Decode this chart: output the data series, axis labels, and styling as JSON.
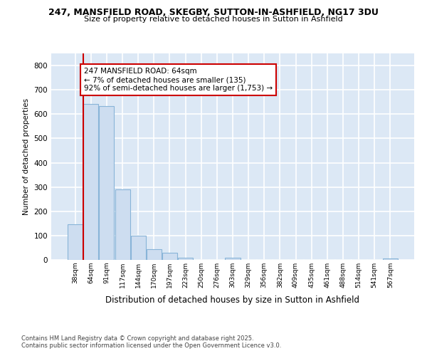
{
  "title_line1": "247, MANSFIELD ROAD, SKEGBY, SUTTON-IN-ASHFIELD, NG17 3DU",
  "title_line2": "Size of property relative to detached houses in Sutton in Ashfield",
  "xlabel": "Distribution of detached houses by size in Sutton in Ashfield",
  "ylabel": "Number of detached properties",
  "categories": [
    "38sqm",
    "64sqm",
    "91sqm",
    "117sqm",
    "144sqm",
    "170sqm",
    "197sqm",
    "223sqm",
    "250sqm",
    "276sqm",
    "303sqm",
    "329sqm",
    "356sqm",
    "382sqm",
    "409sqm",
    "435sqm",
    "461sqm",
    "488sqm",
    "514sqm",
    "541sqm",
    "567sqm"
  ],
  "values": [
    148,
    643,
    632,
    290,
    100,
    45,
    30,
    8,
    0,
    0,
    8,
    0,
    0,
    0,
    0,
    0,
    0,
    0,
    0,
    0,
    7
  ],
  "bar_color": "#cdddf0",
  "bar_edgecolor": "#88b4d8",
  "vline_color": "#cc0000",
  "annotation_text": "247 MANSFIELD ROAD: 64sqm\n← 7% of detached houses are smaller (135)\n92% of semi-detached houses are larger (1,753) →",
  "annotation_box_color": "#cc0000",
  "ylim": [
    0,
    850
  ],
  "yticks": [
    0,
    100,
    200,
    300,
    400,
    500,
    600,
    700,
    800
  ],
  "fig_bg_color": "#ffffff",
  "plot_bg_color": "#dce8f5",
  "grid_color": "#ffffff",
  "footer_line1": "Contains HM Land Registry data © Crown copyright and database right 2025.",
  "footer_line2": "Contains public sector information licensed under the Open Government Licence v3.0."
}
